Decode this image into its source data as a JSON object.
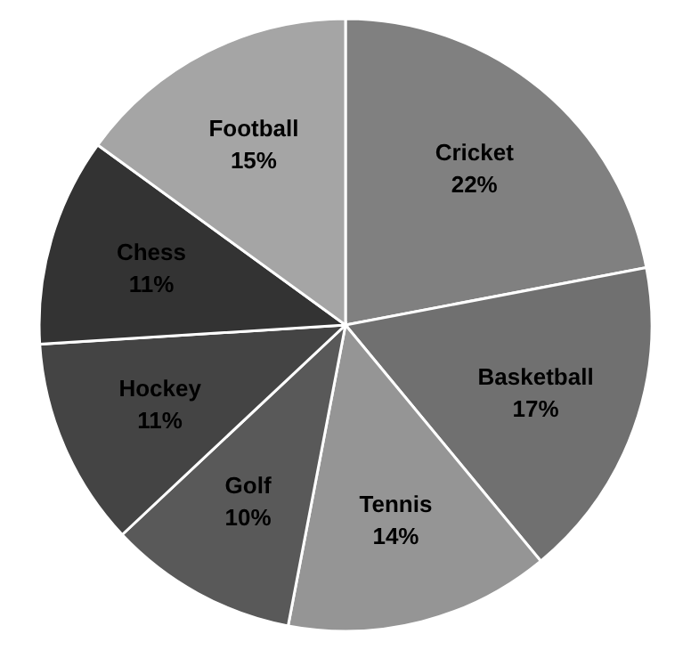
{
  "chart_data": {
    "type": "pie",
    "categories": [
      "Cricket",
      "Basketball",
      "Tennis",
      "Golf",
      "Hockey",
      "Chess",
      "Football"
    ],
    "values": [
      22,
      17,
      14,
      10,
      11,
      11,
      15
    ],
    "colors": [
      "#808080",
      "#707070",
      "#959595",
      "#595959",
      "#444444",
      "#333333",
      "#a5a5a5"
    ],
    "value_labels": [
      "22%",
      "17%",
      "14%",
      "10%",
      "11%",
      "11%",
      "15%"
    ],
    "legend": false
  }
}
